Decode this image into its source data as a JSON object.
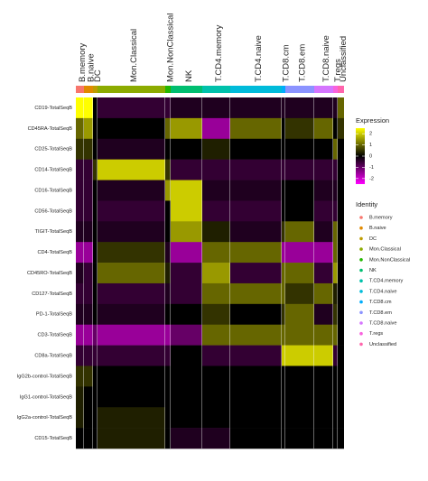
{
  "chart_data": {
    "type": "heatmap",
    "categories": [
      "B.memory",
      "B.naive",
      "DC",
      "Mon.Classical",
      "Mon.NonClassical",
      "NK",
      "T.CD4.memory",
      "T.CD4.naive",
      "T.CD8.cm",
      "T.CD8.em",
      "T.CD8.naive",
      "T.regs",
      "Unclassified"
    ],
    "category_colors": [
      "#F8766D",
      "#E18A00",
      "#BE9C00",
      "#8CAB00",
      "#24B700",
      "#00BE70",
      "#00C1AB",
      "#00BBDA",
      "#00ACFC",
      "#8B93FF",
      "#D575FE",
      "#F962DD",
      "#FF65AC"
    ],
    "features": [
      "CD19-TotalSeqB",
      "CD45RA-TotalSeqB",
      "CD25-TotalSeqB",
      "CD14-TotalSeqB",
      "CD16-TotalSeqB",
      "CD56-TotalSeqB",
      "TIGIT-TotalSeqB",
      "CD4-TotalSeqB",
      "CD45RO-TotalSeqB",
      "CD127-TotalSeqB",
      "PD-1-TotalSeqB",
      "CD3-TotalSeqB",
      "CD8a-TotalSeqB",
      "IgG2b-control-TotalSeqB",
      "IgG1-control-TotalSeqB",
      "IgG2a-control-TotalSeqB",
      "CD15-TotalSeqB"
    ],
    "values": [
      [
        2.5,
        2.5,
        0,
        -0.5,
        -0.5,
        -0.3,
        -0.3,
        -0.3,
        -0.3,
        -0.3,
        -0.3,
        -0.3,
        1
      ],
      [
        1,
        1.5,
        0,
        0,
        1,
        1.5,
        -1.5,
        1,
        0,
        0.5,
        1,
        0,
        0.5
      ],
      [
        0.5,
        0.5,
        0,
        -0.3,
        0,
        0,
        0.3,
        0,
        0,
        0,
        0,
        1,
        0
      ],
      [
        -0.5,
        -0.5,
        0.5,
        2,
        0.5,
        -0.5,
        -0.5,
        -0.5,
        -0.5,
        -0.5,
        -0.5,
        -0.5,
        0
      ],
      [
        -0.5,
        -0.5,
        0,
        -0.3,
        1.5,
        2,
        -0.3,
        -0.3,
        0,
        0,
        -0.3,
        -0.3,
        0
      ],
      [
        -0.5,
        -0.5,
        0,
        -0.5,
        0,
        2,
        -0.5,
        -0.5,
        0,
        0,
        -0.5,
        -0.5,
        0
      ],
      [
        -0.3,
        -0.3,
        0,
        -0.3,
        0,
        1.5,
        0.3,
        -0.3,
        0.5,
        1,
        -0.3,
        1,
        0
      ],
      [
        -1.5,
        -1.5,
        0,
        0.5,
        -0.3,
        -1.5,
        1,
        1,
        -1.5,
        -1.5,
        -1.5,
        1,
        0
      ],
      [
        -0.3,
        -0.5,
        0,
        1,
        0.3,
        -0.5,
        1.5,
        -0.5,
        1,
        1,
        -0.5,
        1.5,
        0
      ],
      [
        -0.5,
        -0.5,
        0,
        -0.5,
        -0.3,
        -0.5,
        1,
        1,
        1,
        0.5,
        1,
        0.3,
        0
      ],
      [
        -0.3,
        -0.3,
        0,
        -0.3,
        0,
        0,
        0.5,
        0,
        0.5,
        1,
        -0.3,
        0.5,
        0
      ],
      [
        -1.5,
        -1.5,
        -1,
        -1.5,
        -1.5,
        -1,
        1,
        1,
        1,
        1,
        1,
        1,
        0
      ],
      [
        -0.5,
        -0.5,
        -0.5,
        -0.5,
        -0.5,
        0,
        -0.5,
        -0.5,
        2,
        2,
        2,
        -0.5,
        0
      ],
      [
        0.5,
        0.5,
        0,
        0,
        0,
        0,
        0,
        0,
        0,
        0,
        0,
        0,
        0
      ],
      [
        0.3,
        0,
        0,
        0,
        0,
        0,
        0,
        0,
        0,
        0,
        0,
        0,
        0
      ],
      [
        0.3,
        0,
        0,
        0.3,
        0,
        0,
        0,
        0,
        0,
        0,
        0,
        0,
        0
      ],
      [
        0,
        0,
        0,
        0.3,
        0,
        -0.3,
        -0.3,
        0,
        0,
        0,
        0,
        0,
        0
      ]
    ],
    "color_scale": {
      "title": "Expression",
      "lim": [
        -2.5,
        2.5
      ],
      "ticks": [
        2,
        1,
        0,
        -1,
        -2
      ],
      "colors": [
        "#FF00FF",
        "#000000",
        "#FFFF00"
      ]
    },
    "identity_legend_title": "Identity"
  }
}
